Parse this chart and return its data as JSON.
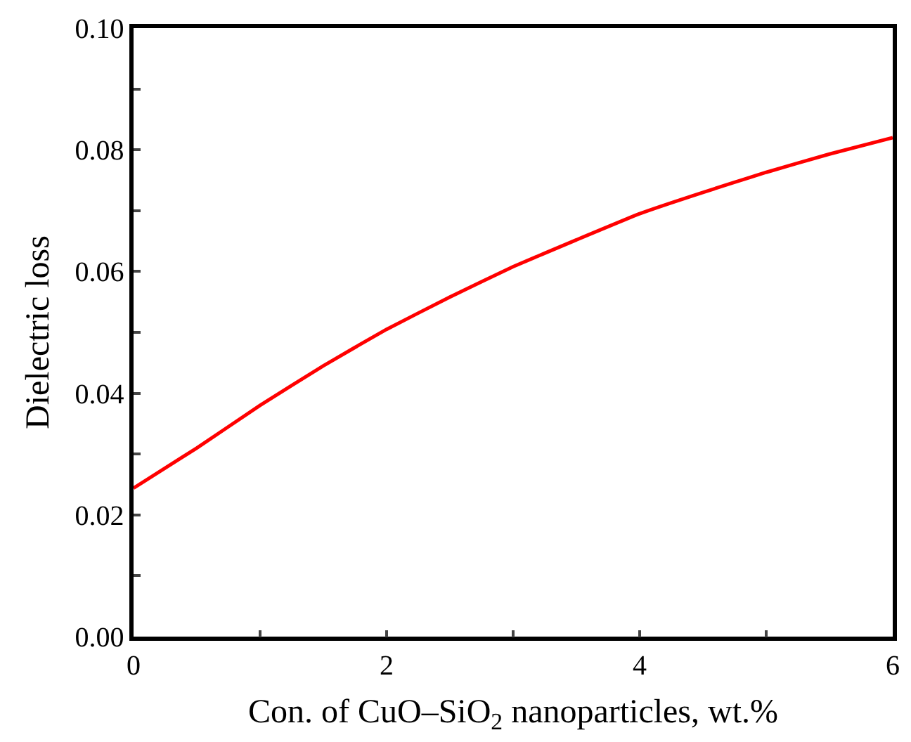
{
  "chart_data": {
    "type": "line",
    "xlabel": "Con. of CuO–SiO$_{2}$ nanoparticles, wt.%",
    "ylabel": "Dielectric loss",
    "x": [
      0,
      0.5,
      1,
      1.5,
      2,
      2.5,
      3,
      3.5,
      4,
      4.5,
      5,
      5.5,
      6
    ],
    "series": [
      {
        "color": "#ff0000",
        "values": [
          0.0244,
          0.031,
          0.038,
          0.0445,
          0.0505,
          0.0558,
          0.0608,
          0.0652,
          0.0695,
          0.073,
          0.0763,
          0.0793,
          0.082
        ]
      }
    ],
    "xlim": [
      0,
      6
    ],
    "xticks": [
      0,
      {
        "value": 1,
        "label": null
      },
      2,
      {
        "value": 3,
        "label": null
      },
      4,
      {
        "value": 5,
        "label": null
      },
      6
    ],
    "ylim": [
      0,
      0.1
    ],
    "yticks": [
      "0.00",
      {
        "value": 0.01,
        "label": null
      },
      {
        "value": 0.02,
        "label": "0.02"
      },
      {
        "value": 0.03,
        "label": null
      },
      {
        "value": 0.04,
        "label": "0.04"
      },
      {
        "value": 0.05,
        "label": null
      },
      {
        "value": 0.06,
        "label": "0.06"
      },
      {
        "value": 0.07,
        "label": null
      },
      {
        "value": 0.08,
        "label": "0.08"
      },
      {
        "value": 0.09,
        "label": null
      },
      {
        "value": 0.1,
        "label": "0.10"
      }
    ],
    "grid": false,
    "marker": "none",
    "line_style": "solid"
  }
}
